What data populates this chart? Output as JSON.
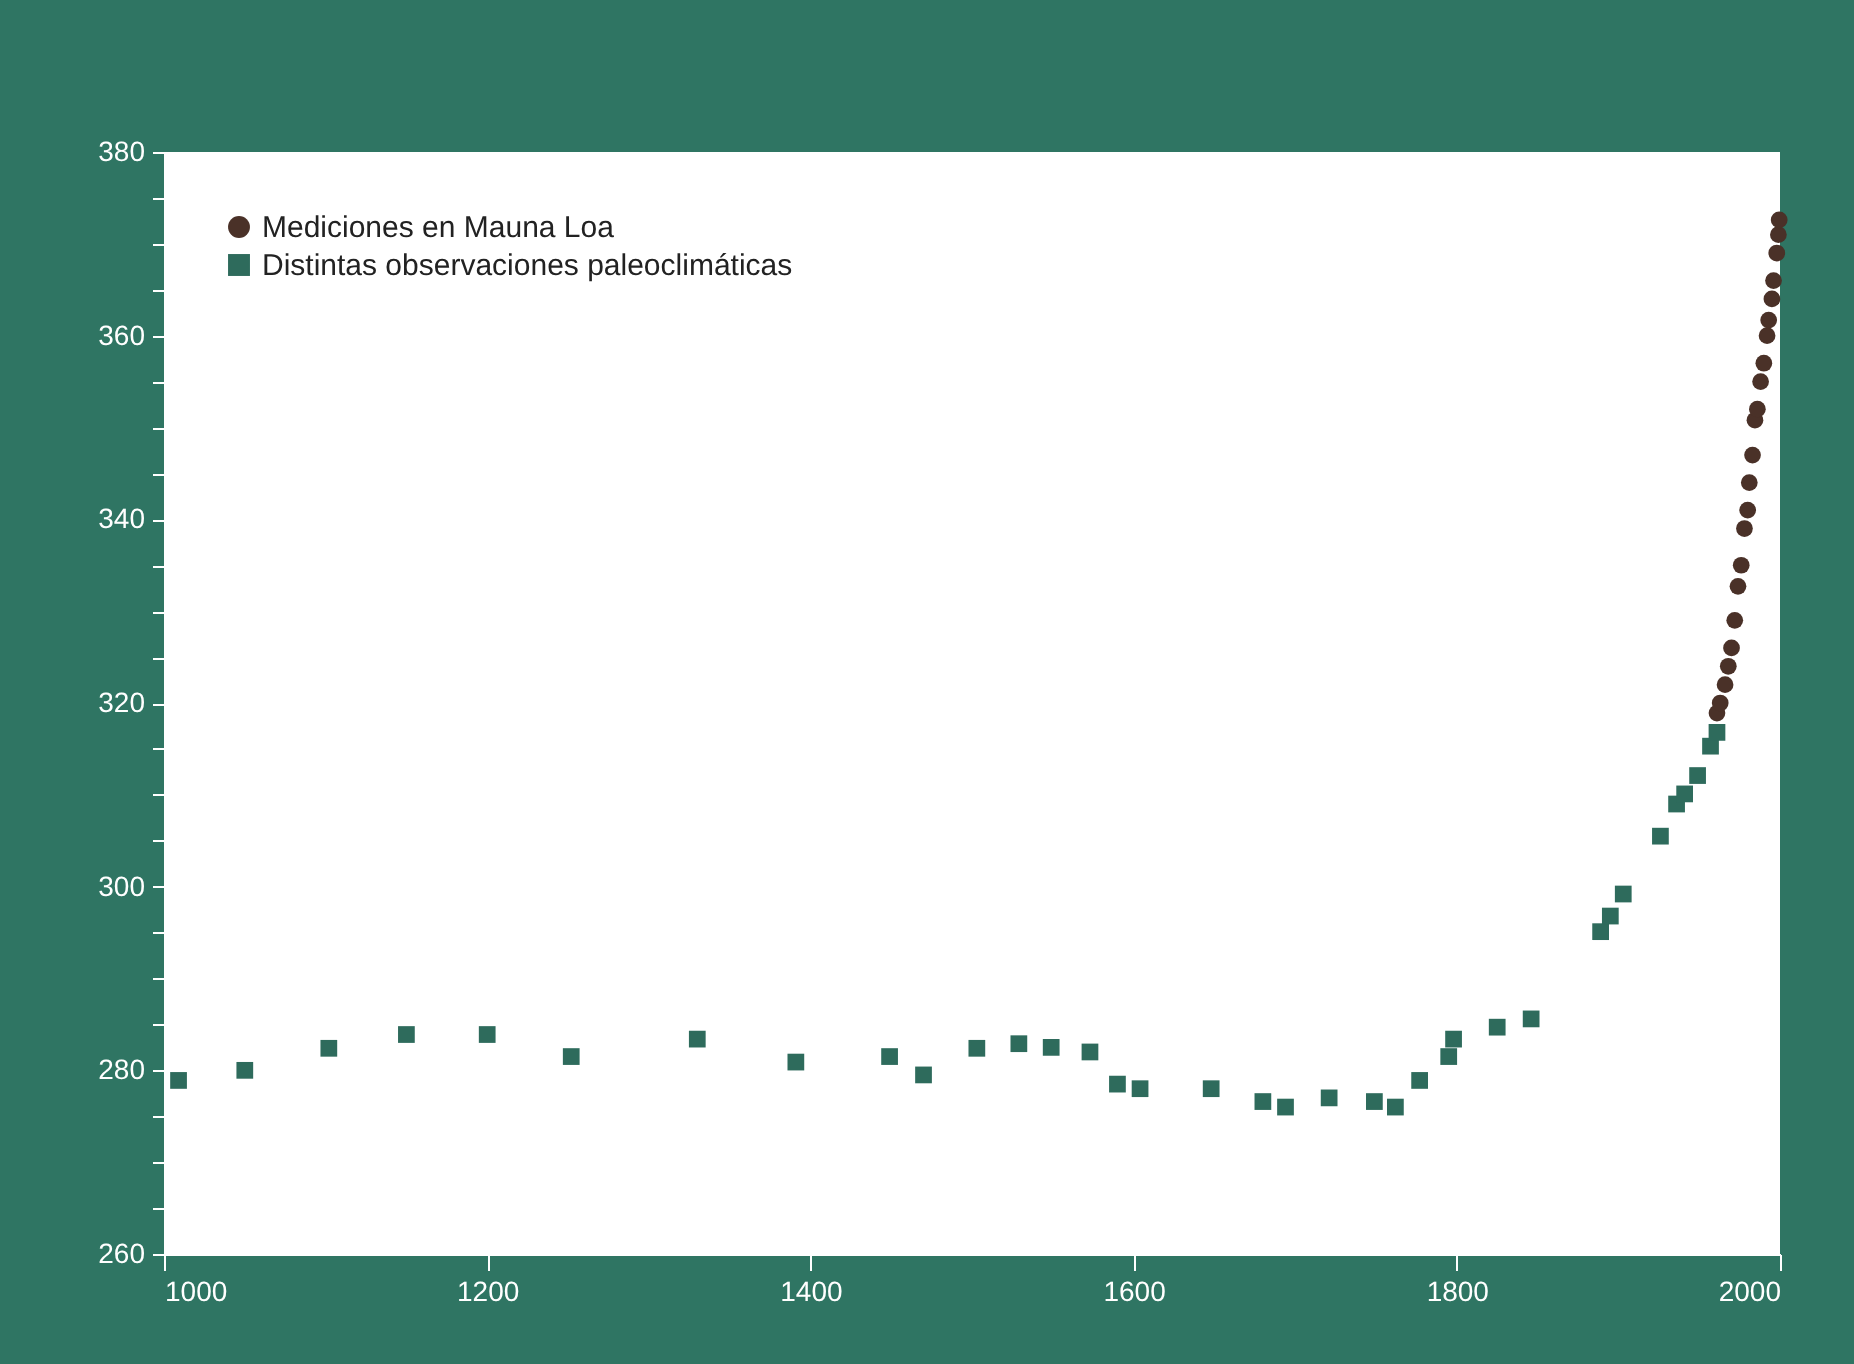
{
  "chart_data": {
    "type": "scatter",
    "xlim": [
      1000,
      2000
    ],
    "xticks": [
      1000,
      1200,
      1400,
      1600,
      1800,
      2000
    ],
    "ylim": [
      260,
      380
    ],
    "yticks": [
      260,
      {
        "value": 265,
        "label": null
      },
      {
        "value": 270,
        "label": null
      },
      {
        "value": 275,
        "label": null
      },
      280,
      {
        "value": 285,
        "label": null
      },
      {
        "value": 290,
        "label": null
      },
      {
        "value": 295,
        "label": null
      },
      300,
      {
        "value": 305,
        "label": null
      },
      {
        "value": 310,
        "label": null
      },
      {
        "value": 315,
        "label": null
      },
      320,
      {
        "value": 325,
        "label": null
      },
      {
        "value": 330,
        "label": null
      },
      {
        "value": 335,
        "label": null
      },
      340,
      {
        "value": 345,
        "label": null
      },
      {
        "value": 350,
        "label": null
      },
      {
        "value": 355,
        "label": null
      },
      360,
      {
        "value": 365,
        "label": null
      },
      {
        "value": 370,
        "label": null
      },
      {
        "value": 375,
        "label": null
      },
      380
    ],
    "grid": false,
    "legend": "top left",
    "series": [
      {
        "name": "Mediciones en Mauna Loa",
        "color": "#4a3128",
        "marker": "circle",
        "x": [
          1961,
          1963,
          1966,
          1968,
          1970,
          1972,
          1974,
          1976,
          1978,
          1980,
          1981,
          1983,
          1984.5,
          1986,
          1988,
          1990,
          1992,
          1993,
          1995,
          1996,
          1998,
          1999,
          1999.5
        ],
        "values": [
          318.9,
          320,
          322,
          324,
          326,
          329,
          332.7,
          335,
          339,
          341,
          344,
          347,
          350.8,
          352,
          355,
          357,
          360,
          361.7,
          364,
          366,
          369,
          371,
          372.6
        ]
      },
      {
        "name": "Distintas observaciones paleoclimáticas",
        "color": "#2e6b5c",
        "marker": "square",
        "x": [
          1009,
          1050,
          1102,
          1150,
          1200,
          1252,
          1330,
          1391,
          1449,
          1470,
          1503,
          1529,
          1549,
          1573,
          1590,
          1604,
          1648,
          1680,
          1694,
          1721,
          1749,
          1762,
          1777,
          1795,
          1798,
          1825,
          1846,
          1889,
          1895,
          1903,
          1926,
          1936,
          1941,
          1949,
          1957,
          1961
        ],
        "values": [
          278.9,
          280,
          282.4,
          283.9,
          283.9,
          281.5,
          283.4,
          280.9,
          281.5,
          279.5,
          282.4,
          282.9,
          282.5,
          282,
          278.5,
          278,
          278,
          276.6,
          276,
          277,
          276.6,
          276,
          278.9,
          281.5,
          283.4,
          284.7,
          285.6,
          295.1,
          296.8,
          299.2,
          305.5,
          309,
          310.1,
          312.1,
          315.3,
          316.8
        ]
      }
    ]
  }
}
